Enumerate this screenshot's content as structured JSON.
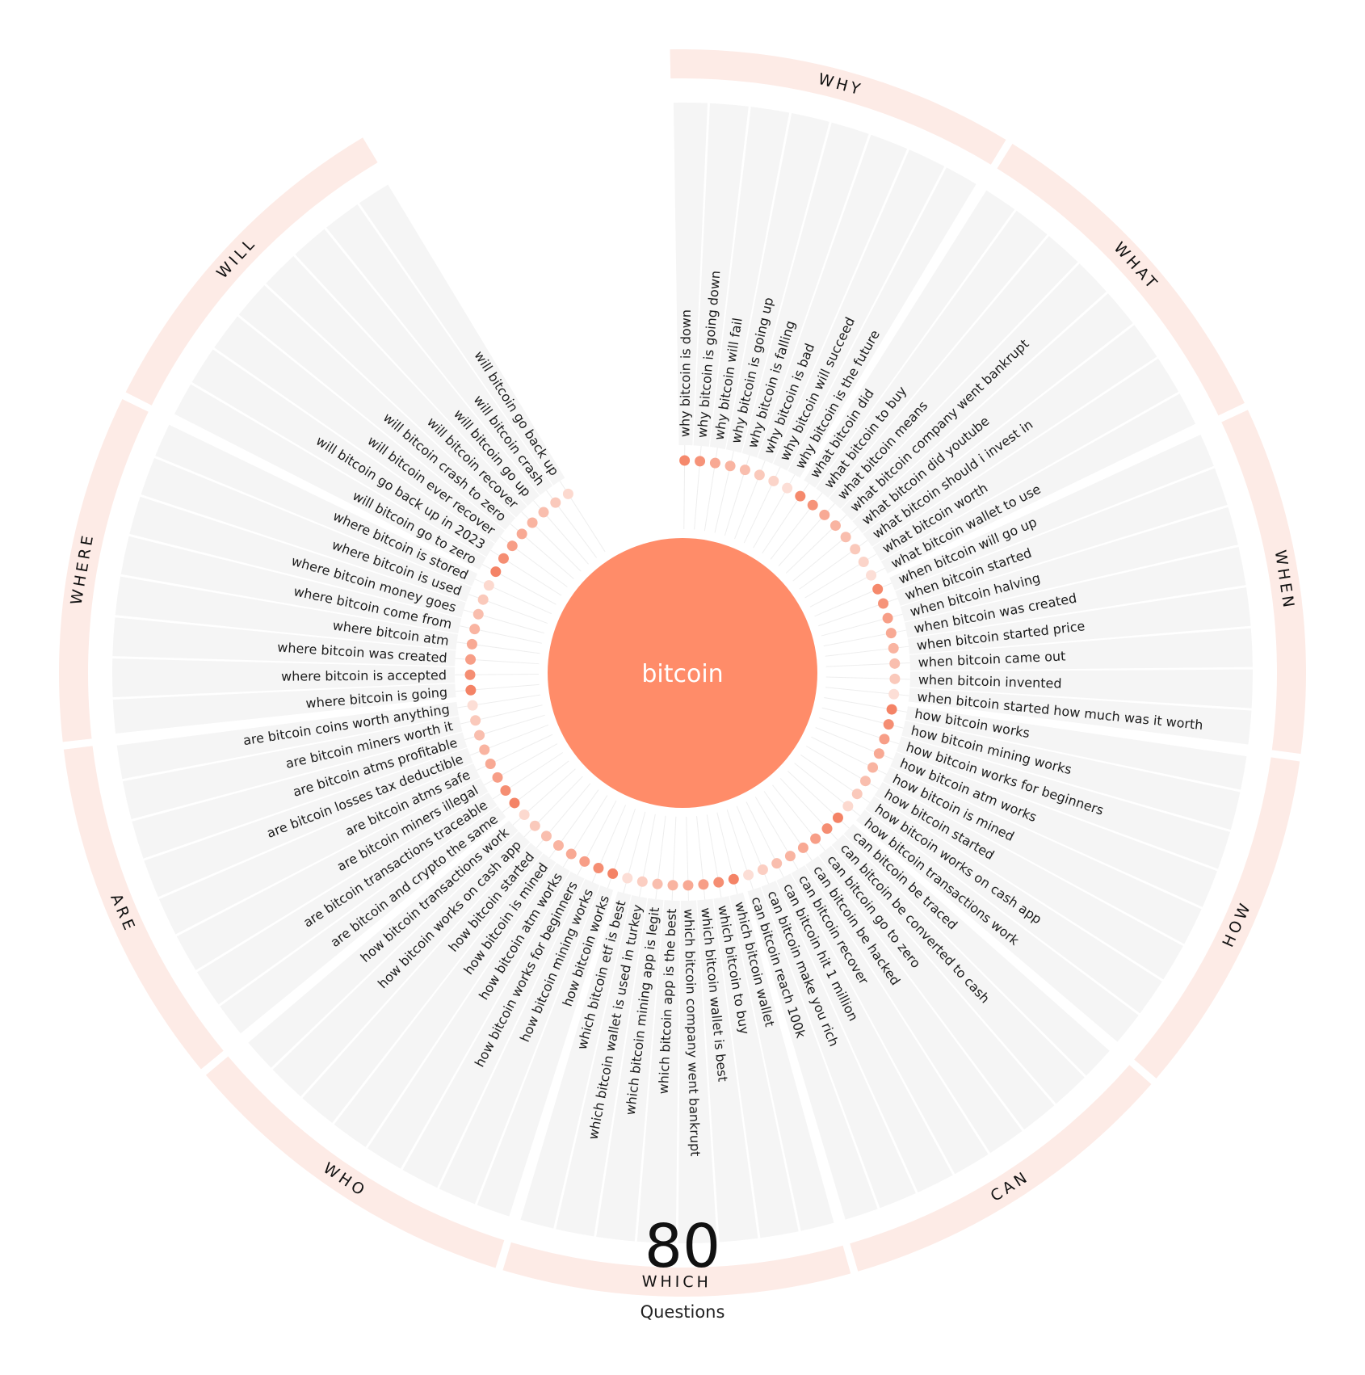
{
  "center_keyword": "bitcoin",
  "total": {
    "count": "80",
    "label": "Questions"
  },
  "colors": {
    "center": "#ff8c69",
    "segment_bg": "#f5f5f5",
    "outer_ring": "#fdebe6",
    "dot_high": "#f47e5f",
    "dot_low": "#fde9e3",
    "spoke": "#eeeeee"
  },
  "categories": [
    {
      "name": "WHY",
      "questions": [
        {
          "text": "why bitcoin is down",
          "level": 0.9
        },
        {
          "text": "why bitcoin is going down",
          "level": 0.8
        },
        {
          "text": "why bitcoin will fail",
          "level": 0.6
        },
        {
          "text": "why bitcoin is going up",
          "level": 0.5
        },
        {
          "text": "why bitcoin is falling",
          "level": 0.4
        },
        {
          "text": "why bitcoin is bad",
          "level": 0.3
        },
        {
          "text": "why bitcoin will succeed",
          "level": 0.2
        },
        {
          "text": "why bitcoin is the future",
          "level": 0.1
        }
      ]
    },
    {
      "name": "WHAT",
      "questions": [
        {
          "text": "what bitcoin did",
          "level": 0.9
        },
        {
          "text": "what bitcoin to buy",
          "level": 0.8
        },
        {
          "text": "what bitcoin means",
          "level": 0.6
        },
        {
          "text": "what bitcoin company went bankrupt",
          "level": 0.5
        },
        {
          "text": "what bitcoin did youtube",
          "level": 0.4
        },
        {
          "text": "what bitcoin should i invest in",
          "level": 0.3
        },
        {
          "text": "what bitcoin worth",
          "level": 0.2
        },
        {
          "text": "what bitcoin wallet to use",
          "level": 0.1
        }
      ]
    },
    {
      "name": "WHEN",
      "questions": [
        {
          "text": "when bitcoin will go up",
          "level": 0.9
        },
        {
          "text": "when bitcoin started",
          "level": 0.8
        },
        {
          "text": "when bitcoin halving",
          "level": 0.7
        },
        {
          "text": "when bitcoin was created",
          "level": 0.6
        },
        {
          "text": "when bitcoin started price",
          "level": 0.5
        },
        {
          "text": "when bitcoin came out",
          "level": 0.4
        },
        {
          "text": "when bitcoin invented",
          "level": 0.3
        },
        {
          "text": "when bitcoin started how much was it worth",
          "level": 0.1
        }
      ]
    },
    {
      "name": "HOW",
      "questions": [
        {
          "text": "how bitcoin works",
          "level": 0.95
        },
        {
          "text": "how bitcoin mining works",
          "level": 0.85
        },
        {
          "text": "how bitcoin works for beginners",
          "level": 0.7
        },
        {
          "text": "how bitcoin atm works",
          "level": 0.6
        },
        {
          "text": "how bitcoin is mined",
          "level": 0.5
        },
        {
          "text": "how bitcoin started",
          "level": 0.4
        },
        {
          "text": "how bitcoin works on cash app",
          "level": 0.3
        },
        {
          "text": "how bitcoin transactions work",
          "level": 0.15
        }
      ]
    },
    {
      "name": "CAN",
      "questions": [
        {
          "text": "can bitcoin be traced",
          "level": 0.95
        },
        {
          "text": "can bitcoin be converted to cash",
          "level": 0.85
        },
        {
          "text": "can bitcoin go to zero",
          "level": 0.7
        },
        {
          "text": "can bitcoin be hacked",
          "level": 0.6
        },
        {
          "text": "can bitcoin recover",
          "level": 0.5
        },
        {
          "text": "can bitcoin hit 1 million",
          "level": 0.4
        },
        {
          "text": "can bitcoin make you rich",
          "level": 0.25
        },
        {
          "text": "can bitcoin reach 100k",
          "level": 0.1
        }
      ]
    },
    {
      "name": "WHICH",
      "questions": [
        {
          "text": "which bitcoin wallet",
          "level": 0.95
        },
        {
          "text": "which bitcoin to buy",
          "level": 0.85
        },
        {
          "text": "which bitcoin wallet is best",
          "level": 0.7
        },
        {
          "text": "which bitcoin company went bankrupt",
          "level": 0.6
        },
        {
          "text": "which bitcoin app is the best",
          "level": 0.5
        },
        {
          "text": "which bitcoin mining app is legit",
          "level": 0.4
        },
        {
          "text": "which bitcoin wallet is used in turkey",
          "level": 0.25
        },
        {
          "text": "which bitcoin etf is best",
          "level": 0.1
        }
      ]
    },
    {
      "name": "WHO",
      "questions": [
        {
          "text": "how bitcoin works",
          "level": 0.95
        },
        {
          "text": "how bitcoin mining works",
          "level": 0.85
        },
        {
          "text": "how bitcoin works for beginners",
          "level": 0.7
        },
        {
          "text": "how bitcoin atm works",
          "level": 0.6
        },
        {
          "text": "how bitcoin is mined",
          "level": 0.5
        },
        {
          "text": "how bitcoin started",
          "level": 0.4
        },
        {
          "text": "how bitcoin works on cash app",
          "level": 0.3
        },
        {
          "text": "how bitcoin transactions work",
          "level": 0.15
        }
      ]
    },
    {
      "name": "ARE",
      "questions": [
        {
          "text": "are bitcoin and crypto the same",
          "level": 0.95
        },
        {
          "text": "are bitcoin transactions traceable",
          "level": 0.85
        },
        {
          "text": "are bitcoin miners illegal",
          "level": 0.7
        },
        {
          "text": "are bitcoin atms safe",
          "level": 0.6
        },
        {
          "text": "are bitcoin losses tax deductible",
          "level": 0.5
        },
        {
          "text": "are bitcoin atms profitable",
          "level": 0.4
        },
        {
          "text": "are bitcoin miners worth it",
          "level": 0.3
        },
        {
          "text": "are bitcoin coins worth anything",
          "level": 0.1
        }
      ]
    },
    {
      "name": "WHERE",
      "questions": [
        {
          "text": "where bitcoin is going",
          "level": 0.95
        },
        {
          "text": "where bitcoin is accepted",
          "level": 0.85
        },
        {
          "text": "where bitcoin was created",
          "level": 0.7
        },
        {
          "text": "where bitcoin atm",
          "level": 0.6
        },
        {
          "text": "where bitcoin come from",
          "level": 0.5
        },
        {
          "text": "where bitcoin money goes",
          "level": 0.4
        },
        {
          "text": "where bitcoin is used",
          "level": 0.3
        },
        {
          "text": "where bitcoin is stored",
          "level": 0.15
        }
      ]
    },
    {
      "name": "WILL",
      "questions": [
        {
          "text": "will bitcoin go to zero",
          "level": 0.95
        },
        {
          "text": "will bitcoin go back up in 2023",
          "level": 0.85
        },
        {
          "text": "will bitcoin ever recover",
          "level": 0.7
        },
        {
          "text": "will bitcoin crash to zero",
          "level": 0.6
        },
        {
          "text": "will bitcoin recover",
          "level": 0.5
        },
        {
          "text": "will bitcoin go up",
          "level": 0.4
        },
        {
          "text": "will bitcoin crash",
          "level": 0.3
        },
        {
          "text": "will bitcoin go back up",
          "level": 0.15
        }
      ]
    }
  ]
}
